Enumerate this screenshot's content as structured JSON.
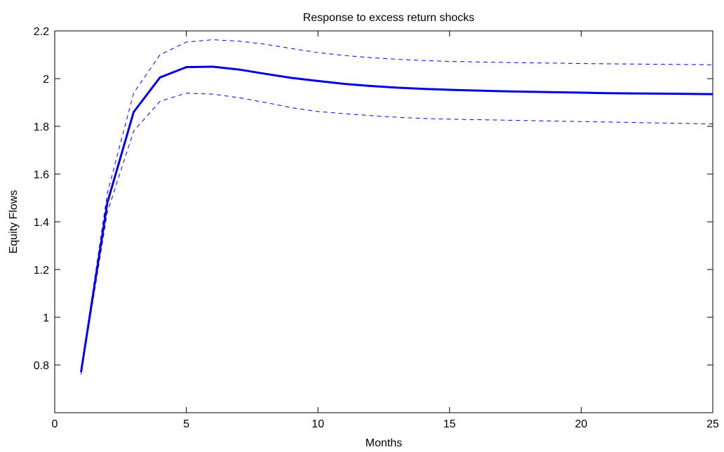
{
  "chart_data": {
    "type": "line",
    "title": "Response to excess return shocks",
    "xlabel": "Months",
    "ylabel": "Equity Flows",
    "xlim": [
      0,
      25
    ],
    "ylim": [
      0.6,
      2.2
    ],
    "x_ticks": [
      0,
      5,
      10,
      15,
      20,
      25
    ],
    "y_ticks": [
      0.8,
      1,
      1.2,
      1.4,
      1.6,
      1.8,
      2,
      2.2
    ],
    "x_tick_labels": [
      "0",
      "5",
      "10",
      "15",
      "20",
      "25"
    ],
    "y_tick_labels": [
      "0.8",
      "1",
      "1.2",
      "1.4",
      "1.6",
      "1.8",
      "2",
      "2.2"
    ],
    "grid": false,
    "legend": "none",
    "x": [
      1,
      2,
      3,
      4,
      5,
      6,
      7,
      8,
      9,
      10,
      11,
      12,
      13,
      14,
      15,
      16,
      17,
      18,
      19,
      20,
      21,
      22,
      23,
      24,
      25
    ],
    "series": [
      {
        "style": "solid",
        "color": "#0000dd",
        "values": [
          0.77,
          1.48,
          1.86,
          2.005,
          2.048,
          2.05,
          2.038,
          2.02,
          2.003,
          1.99,
          1.978,
          1.969,
          1.962,
          1.957,
          1.953,
          1.95,
          1.947,
          1.945,
          1.943,
          1.941,
          1.939,
          1.938,
          1.937,
          1.936,
          1.935
        ]
      },
      {
        "style": "dashed",
        "color": "#0000dd",
        "values": [
          0.78,
          1.52,
          1.94,
          2.1,
          2.153,
          2.163,
          2.157,
          2.144,
          2.126,
          2.109,
          2.097,
          2.088,
          2.081,
          2.076,
          2.072,
          2.07,
          2.068,
          2.066,
          2.065,
          2.063,
          2.062,
          2.061,
          2.06,
          2.059,
          2.058
        ]
      },
      {
        "style": "dashed",
        "color": "#0000dd",
        "values": [
          0.76,
          1.44,
          1.78,
          1.905,
          1.939,
          1.935,
          1.92,
          1.9,
          1.878,
          1.862,
          1.853,
          1.845,
          1.838,
          1.833,
          1.83,
          1.828,
          1.826,
          1.824,
          1.822,
          1.82,
          1.818,
          1.816,
          1.814,
          1.812,
          1.81
        ]
      }
    ]
  }
}
